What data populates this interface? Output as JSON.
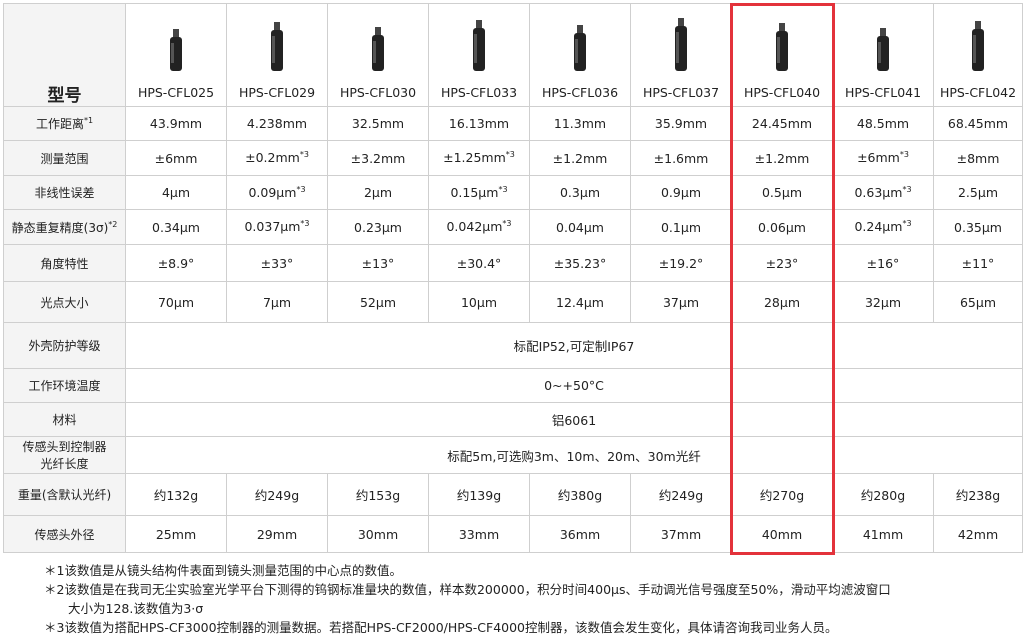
{
  "header": {
    "title": "型号",
    "models": [
      "HPS-CFL025",
      "HPS-CFL029",
      "HPS-CFL030",
      "HPS-CFL033",
      "HPS-CFL036",
      "HPS-CFL037",
      "HPS-CFL040",
      "HPS-CFL041",
      "HPS-CFL042"
    ]
  },
  "table": {
    "rows": [
      {
        "label": [
          "工作距离"
        ],
        "note": "*1",
        "cells": [
          {
            "text": "43.9mm"
          },
          {
            "text": "4.238mm"
          },
          {
            "text": "32.5mm"
          },
          {
            "text": "16.13mm"
          },
          {
            "text": "11.3mm"
          },
          {
            "text": "35.9mm"
          },
          {
            "text": "24.45mm"
          },
          {
            "text": "48.5mm"
          },
          {
            "text": "68.45mm"
          }
        ]
      },
      {
        "label": [
          "测量范围"
        ],
        "cells": [
          {
            "text": "±6mm"
          },
          {
            "text": "±0.2mm",
            "note": "*3"
          },
          {
            "text": "±3.2mm"
          },
          {
            "text": "±1.25mm",
            "note": "*3"
          },
          {
            "text": "±1.2mm"
          },
          {
            "text": "±1.6mm"
          },
          {
            "text": "±1.2mm"
          },
          {
            "text": "±6mm",
            "note": "*3"
          },
          {
            "text": "±8mm"
          }
        ]
      },
      {
        "label": [
          "非线性误差"
        ],
        "cells": [
          {
            "text": "4μm"
          },
          {
            "text": "0.09μm",
            "note": "*3"
          },
          {
            "text": "2μm"
          },
          {
            "text": "0.15μm",
            "note": "*3"
          },
          {
            "text": "0.3μm"
          },
          {
            "text": "0.9μm"
          },
          {
            "text": "0.5μm"
          },
          {
            "text": "0.63μm",
            "note": "*3"
          },
          {
            "text": "2.5μm"
          }
        ]
      },
      {
        "label": [
          "静态重复精度(3σ)"
        ],
        "note": "*2",
        "cells": [
          {
            "text": "0.34μm"
          },
          {
            "text": "0.037μm",
            "note": "*3"
          },
          {
            "text": "0.23μm"
          },
          {
            "text": "0.042μm",
            "note": "*3"
          },
          {
            "text": "0.04μm"
          },
          {
            "text": "0.1μm"
          },
          {
            "text": "0.06μm"
          },
          {
            "text": "0.24μm",
            "note": "*3"
          },
          {
            "text": "0.35μm"
          }
        ]
      },
      {
        "label": [
          "角度特性"
        ],
        "cells": [
          {
            "text": "±8.9°"
          },
          {
            "text": "±33°"
          },
          {
            "text": "±13°"
          },
          {
            "text": "±30.4°"
          },
          {
            "text": "±35.23°"
          },
          {
            "text": "±19.2°"
          },
          {
            "text": "±23°"
          },
          {
            "text": "±16°"
          },
          {
            "text": "±11°"
          }
        ]
      },
      {
        "label": [
          "光点大小"
        ],
        "cells": [
          {
            "text": "70μm"
          },
          {
            "text": "7μm"
          },
          {
            "text": "52μm"
          },
          {
            "text": "10μm"
          },
          {
            "text": "12.4μm"
          },
          {
            "text": "37μm"
          },
          {
            "text": "28μm"
          },
          {
            "text": "32μm"
          },
          {
            "text": "65μm"
          }
        ]
      },
      {
        "label": [
          "外壳防护等级"
        ],
        "span": "标配IP52,可定制IP67"
      },
      {
        "label": [
          "工作环境温度"
        ],
        "span": "0~+50°C"
      },
      {
        "label": [
          "材料"
        ],
        "span": "铝6061"
      },
      {
        "label": [
          "传感头到控制器",
          "光纤长度"
        ],
        "span": "标配5m,可选购3m、10m、20m、30m光纤"
      },
      {
        "label": [
          "重量(含默认光纤)"
        ],
        "cells": [
          {
            "text": "约132g"
          },
          {
            "text": "约249g"
          },
          {
            "text": "约153g"
          },
          {
            "text": "约139g"
          },
          {
            "text": "约380g"
          },
          {
            "text": "约249g"
          },
          {
            "text": "约270g"
          },
          {
            "text": "约280g"
          },
          {
            "text": "约238g"
          }
        ]
      },
      {
        "label": [
          "传感头外径"
        ],
        "cells": [
          {
            "text": "25mm"
          },
          {
            "text": "29mm"
          },
          {
            "text": "30mm"
          },
          {
            "text": "33mm"
          },
          {
            "text": "36mm"
          },
          {
            "text": "37mm"
          },
          {
            "text": "40mm"
          },
          {
            "text": "41mm"
          },
          {
            "text": "42mm"
          }
        ]
      }
    ]
  },
  "footnotes": [
    [
      "＊1该数值是从镜头结构件表面到镜头测量范围的中心点的数值。"
    ],
    [
      "＊2该数值是在我司无尘实验室光学平台下测得的钨钢标准量块的数值，样本数200000，积分时间400μs、手动调光信号强度至50%，滑动平均滤波窗口",
      "大小为128.该数值为3·σ"
    ],
    [
      "＊3该数值为搭配HPS-CF3000控制器的测量数据。若搭配HPS-CF2000/HPS-CF4000控制器，该数值会发生变化，具体请咨询我司业务人员。"
    ]
  ]
}
